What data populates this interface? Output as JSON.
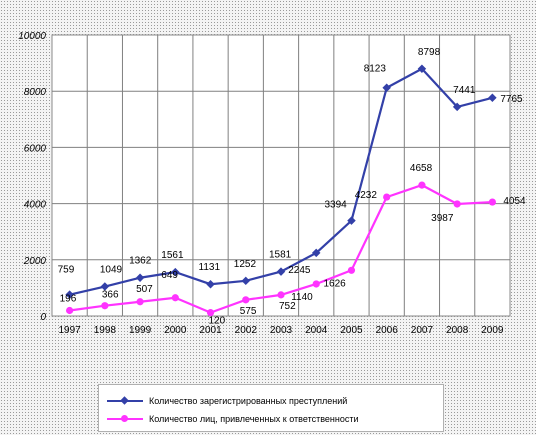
{
  "chart_data": {
    "type": "line",
    "categories": [
      "1997",
      "1998",
      "1999",
      "2000",
      "2001",
      "2002",
      "2003",
      "2004",
      "2005",
      "2006",
      "2007",
      "2008",
      "2009"
    ],
    "ylim": [
      0,
      10000
    ],
    "yticks": [
      "0",
      "2000",
      "4000",
      "6000",
      "8000",
      "10000"
    ],
    "grid": true,
    "legend_position": "bottom",
    "series": [
      {
        "name": "Количество зарегистрированных преступлений",
        "color": "#3340a8",
        "marker": "diamond",
        "values": [
          759,
          1049,
          1362,
          1561,
          1131,
          1252,
          1581,
          2245,
          3394,
          8123,
          8798,
          7441,
          7765
        ],
        "labels": [
          "759",
          "1049",
          "1362",
          "1561",
          "1131",
          "1252",
          "1581",
          "2245",
          "3394",
          "8123",
          "8798",
          "7441",
          "7765"
        ]
      },
      {
        "name": "Количество лиц, привлеченных к ответственности",
        "color": "#ff33ff",
        "marker": "circle",
        "values": [
          196,
          366,
          507,
          649,
          120,
          575,
          752,
          1140,
          1626,
          4232,
          4658,
          3987,
          4054
        ],
        "labels": [
          "196",
          "366",
          "507",
          "649",
          "120",
          "575",
          "752",
          "1140",
          "1626",
          "4232",
          "4658",
          "3987",
          "4054"
        ]
      }
    ]
  }
}
